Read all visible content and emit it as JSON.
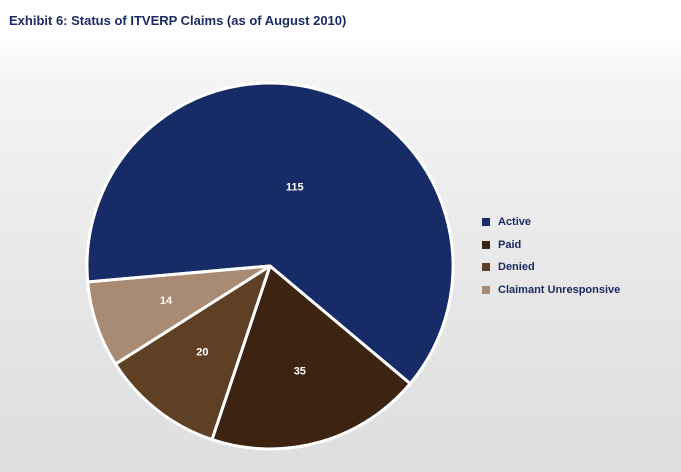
{
  "title": "Exhibit 6: Status of ITVERP Claims (as of August 2010)",
  "chart_data": {
    "type": "pie",
    "title": "Exhibit 6: Status of ITVERP Claims (as of August 2010)",
    "categories": [
      "Active",
      "Paid",
      "Denied",
      "Claimant Unresponsive"
    ],
    "values": [
      115,
      35,
      20,
      14
    ],
    "colors": [
      "#172c66",
      "#3d2412",
      "#5f4024",
      "#a98a72"
    ],
    "legend_position": "right",
    "data_labels": [
      "115",
      "35",
      "20",
      "14"
    ]
  },
  "legend": {
    "items": [
      {
        "label": "Active",
        "color": "#172c66"
      },
      {
        "label": "Paid",
        "color": "#3d2412"
      },
      {
        "label": "Denied",
        "color": "#5f4024"
      },
      {
        "label": "Claimant Unresponsive",
        "color": "#a98a72"
      }
    ]
  }
}
